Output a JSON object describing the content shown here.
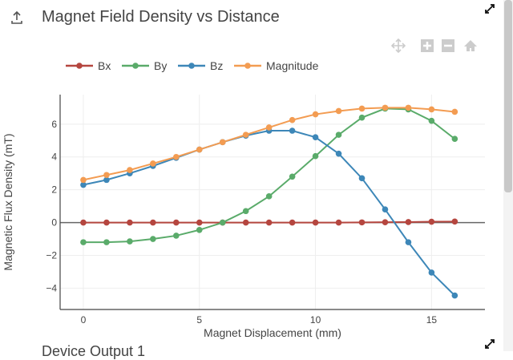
{
  "header": {
    "title": "Magnet Field Density vs Distance",
    "upload_icon": "upload-icon",
    "expand_icon": "expand-icon"
  },
  "toolbar": {
    "icons": [
      "pan-icon",
      "zoom-in-icon",
      "zoom-out-icon",
      "home-icon"
    ]
  },
  "next_panel": {
    "title": "Device Output 1"
  },
  "chart_data": {
    "type": "line",
    "title": "",
    "xlabel": "Magnet Displacement (mm)",
    "ylabel": "Magnetic Flux Density (mT)",
    "xlim": [
      -1,
      17.3
    ],
    "ylim": [
      -5.3,
      7.8
    ],
    "xticks": [
      0,
      5,
      10,
      15
    ],
    "yticks": [
      -4,
      -2,
      0,
      2,
      4,
      6
    ],
    "grid": true,
    "legend_placement": "top-left horizontal",
    "x": [
      0,
      1,
      2,
      3,
      4,
      5,
      6,
      7,
      8,
      9,
      10,
      11,
      12,
      13,
      14,
      15,
      16
    ],
    "series": [
      {
        "name": "Bx",
        "color": "#b5463f",
        "values": [
          0,
          0,
          0,
          0,
          0,
          0,
          0,
          0,
          0,
          0,
          0,
          0,
          0.01,
          0.02,
          0.03,
          0.05,
          0.06
        ]
      },
      {
        "name": "By",
        "color": "#5aab6a",
        "values": [
          -1.2,
          -1.2,
          -1.15,
          -1.0,
          -0.8,
          -0.45,
          0.0,
          0.7,
          1.6,
          2.8,
          4.05,
          5.35,
          6.4,
          6.95,
          6.9,
          6.2,
          5.1
        ]
      },
      {
        "name": "Bz",
        "color": "#3d87b8",
        "values": [
          2.3,
          2.6,
          3.0,
          3.45,
          3.95,
          4.45,
          4.9,
          5.3,
          5.6,
          5.6,
          5.2,
          4.2,
          2.7,
          0.8,
          -1.2,
          -3.05,
          -4.45
        ]
      },
      {
        "name": "Magnitude",
        "color": "#f39c52",
        "values": [
          2.6,
          2.9,
          3.2,
          3.6,
          4.0,
          4.45,
          4.9,
          5.35,
          5.8,
          6.25,
          6.6,
          6.8,
          6.95,
          7.0,
          7.0,
          6.9,
          6.75
        ]
      }
    ]
  }
}
